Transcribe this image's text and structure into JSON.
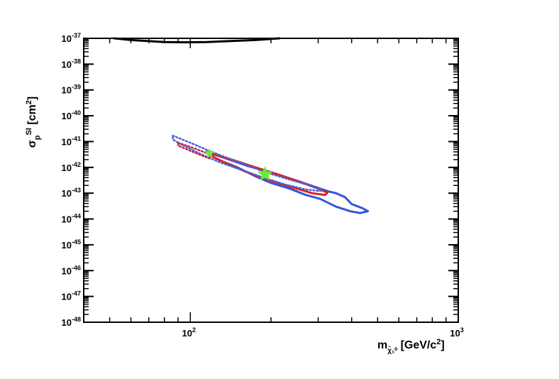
{
  "chart_data": {
    "type": "line",
    "title": "",
    "xlabel": "m_{χ̃₁⁰} [GeV/c²]",
    "ylabel": "σ_p^{SI} [cm²]",
    "x_scale": "log",
    "y_scale": "log",
    "xlim": [
      40,
      1000
    ],
    "ylim": [
      1e-48,
      1e-37
    ],
    "x_tick_labels": [
      {
        "value": 100,
        "label": "10",
        "exp": "2"
      },
      {
        "value": 1000,
        "label": "10",
        "exp": "3"
      }
    ],
    "y_tick_labels": [
      {
        "value": 1e-37,
        "label": "10",
        "exp": "-37"
      },
      {
        "value": 1e-38,
        "label": "10",
        "exp": "-38"
      },
      {
        "value": 1e-39,
        "label": "10",
        "exp": "-39"
      },
      {
        "value": 1e-40,
        "label": "10",
        "exp": "-40"
      },
      {
        "value": 1e-41,
        "label": "10",
        "exp": "-41"
      },
      {
        "value": 1e-42,
        "label": "10",
        "exp": "-42"
      },
      {
        "value": 1e-43,
        "label": "10",
        "exp": "-43"
      },
      {
        "value": 1e-44,
        "label": "10",
        "exp": "-44"
      },
      {
        "value": 1e-45,
        "label": "10",
        "exp": "-45"
      },
      {
        "value": 1e-46,
        "label": "10",
        "exp": "-46"
      },
      {
        "value": 1e-47,
        "label": "10",
        "exp": "-47"
      },
      {
        "value": 1e-48,
        "label": "10",
        "exp": "-48"
      }
    ],
    "grid": false,
    "legend": null,
    "series": [
      {
        "kind": "curve",
        "color": "#000000",
        "style": "solid",
        "points": [
          [
            52,
            1e-37
          ],
          [
            60,
            8.6e-38
          ],
          [
            80,
            7.2e-38
          ],
          [
            95,
            7e-38
          ],
          [
            115,
            7.2e-38
          ],
          [
            140,
            7.8e-38
          ],
          [
            175,
            8.6e-38
          ],
          [
            215,
            1e-37
          ]
        ]
      },
      {
        "kind": "contour",
        "color": "#3355dd",
        "style": "solid",
        "points": [
          [
            115,
            4e-42
          ],
          [
            140,
            2e-42
          ],
          [
            165,
            1.1e-42
          ],
          [
            200,
            6.5e-43
          ],
          [
            240,
            3.5e-43
          ],
          [
            290,
            1.8e-43
          ],
          [
            330,
            1.15e-43
          ],
          [
            350,
            1e-43
          ],
          [
            378,
            7e-44
          ],
          [
            400,
            3.8e-44
          ],
          [
            440,
            2.6e-44
          ],
          [
            460,
            2e-44
          ],
          [
            430,
            1.7e-44
          ],
          [
            395,
            2e-44
          ],
          [
            350,
            3e-44
          ],
          [
            305,
            6e-44
          ],
          [
            270,
            8.5e-44
          ],
          [
            235,
            1.5e-43
          ],
          [
            200,
            2.5e-43
          ],
          [
            175,
            4.5e-43
          ],
          [
            150,
            1e-42
          ],
          [
            130,
            1.8e-42
          ],
          [
            118,
            3e-42
          ]
        ],
        "closed": true
      },
      {
        "kind": "contour",
        "color": "#e02020",
        "style": "solid",
        "points": [
          [
            118,
            3.5e-42
          ],
          [
            145,
            1.9e-42
          ],
          [
            175,
            1e-42
          ],
          [
            210,
            5.5e-43
          ],
          [
            250,
            3e-43
          ],
          [
            295,
            1.6e-43
          ],
          [
            325,
            1.05e-43
          ],
          [
            318,
            8.5e-44
          ],
          [
            285,
            1e-43
          ],
          [
            250,
            1.5e-43
          ],
          [
            215,
            2.4e-43
          ],
          [
            185,
            4e-43
          ],
          [
            160,
            7e-43
          ],
          [
            138,
            1.35e-42
          ],
          [
            122,
            2.5e-42
          ]
        ],
        "closed": true
      },
      {
        "kind": "contour",
        "color": "#4466dd",
        "style": "dotted",
        "points": [
          [
            86,
            1.7e-41
          ],
          [
            100,
            9e-42
          ],
          [
            115,
            4.8e-42
          ],
          [
            135,
            2.5e-42
          ],
          [
            160,
            1.3e-42
          ],
          [
            190,
            6.5e-43
          ],
          [
            225,
            3.8e-43
          ],
          [
            270,
            2.2e-43
          ],
          [
            300,
            1.5e-43
          ],
          [
            310,
            1.35e-43
          ],
          [
            305,
            1.2e-43
          ],
          [
            270,
            1.4e-43
          ],
          [
            225,
            2.2e-43
          ],
          [
            185,
            4.2e-43
          ],
          [
            155,
            8e-43
          ],
          [
            130,
            1.5e-42
          ],
          [
            108,
            3.5e-42
          ],
          [
            92,
            8e-42
          ],
          [
            86,
            1.2e-41
          ]
        ],
        "closed": true
      },
      {
        "kind": "contour",
        "color": "#cc2244",
        "style": "dotted",
        "points": [
          [
            90,
            9e-42
          ],
          [
            105,
            5.2e-42
          ],
          [
            120,
            3e-42
          ],
          [
            118,
            2.2e-42
          ],
          [
            102,
            4e-42
          ],
          [
            90,
            7e-42
          ]
        ],
        "closed": true
      },
      {
        "kind": "marker",
        "color": "#66ee33",
        "symbol": "star",
        "size": "large",
        "points": [
          [
            190,
            5.5e-43
          ]
        ]
      },
      {
        "kind": "marker",
        "color": "#66ee33",
        "symbol": "star",
        "size": "small",
        "points": [
          [
            118,
            3.5e-42
          ]
        ]
      }
    ]
  }
}
